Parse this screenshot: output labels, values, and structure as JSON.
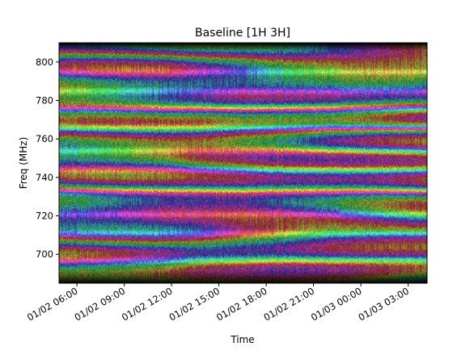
{
  "chart_data": {
    "type": "heatmap",
    "title": "Baseline [1H 3H]",
    "xlabel": "Time",
    "ylabel": "Freq (MHz)",
    "x_type": "datetime",
    "xlim": [
      "01/02 04:52",
      "01/03 04:12"
    ],
    "ylim": [
      685,
      810
    ],
    "xtick_labels": [
      "01/02 06:00",
      "01/02 09:00",
      "01/02 12:00",
      "01/02 15:00",
      "01/02 18:00",
      "01/02 21:00",
      "01/03 00:00",
      "01/03 03:00"
    ],
    "yticks": [
      700,
      720,
      740,
      760,
      780,
      800
    ],
    "ytick_labels": [
      "700",
      "720",
      "740",
      "760",
      "780",
      "800"
    ],
    "grid": false,
    "colormap": "phase hue (HSV) with amplitude as brightness",
    "bright_bands_mhz": [
      697,
      711,
      721,
      733,
      744,
      754,
      766,
      776,
      785,
      795
    ],
    "dark_edges_mhz": [
      [
        685,
        692
      ],
      [
        806,
        810
      ]
    ],
    "transition_time": "01/02 11:30",
    "colors": {
      "axis": "#000000",
      "background": "#ffffff"
    }
  }
}
